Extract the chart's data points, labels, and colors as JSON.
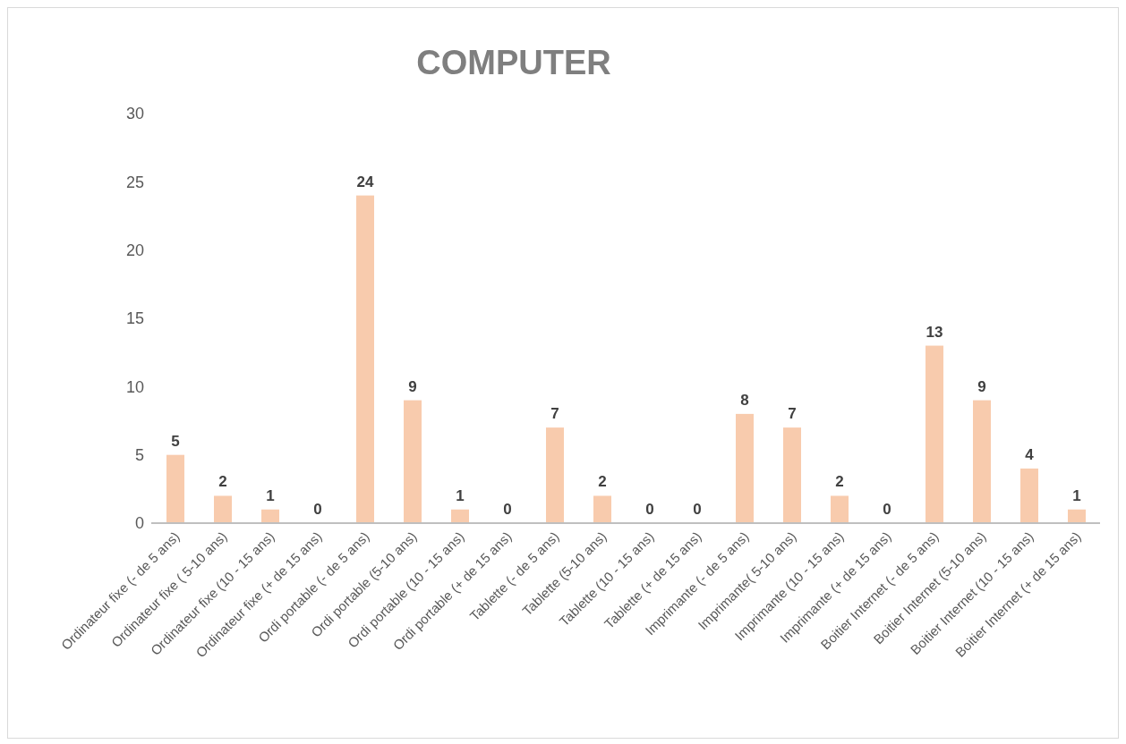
{
  "chart_data": {
    "type": "bar",
    "title": "COMPUTER",
    "categories": [
      "Ordinateur fixe (- de 5 ans)",
      "Ordinateur fixe ( 5-10 ans)",
      "Ordinateur fixe (10 - 15 ans)",
      "Ordinateur fixe (+ de 15 ans)",
      "Ordi portable (- de 5 ans)",
      "Ordi portable (5-10 ans)",
      "Ordi portable (10 - 15 ans)",
      "Ordi portable (+ de 15 ans)",
      "Tablette (- de 5 ans)",
      "Tablette (5-10 ans)",
      "Tablette (10 - 15 ans)",
      "Tablette (+ de 15 ans)",
      "Imprimante (- de 5 ans)",
      "Imprimante( 5-10 ans)",
      "Imprimante (10 - 15 ans)",
      "Imprimante (+ de 15 ans)",
      "Boitier Internet (- de 5 ans)",
      "Boitier Internet (5-10 ans)",
      "Boitier Internet (10 - 15 ans)",
      "Boitier Internet (+ de 15 ans)"
    ],
    "values": [
      5,
      2,
      1,
      0,
      24,
      9,
      1,
      0,
      7,
      2,
      0,
      0,
      8,
      7,
      2,
      0,
      13,
      9,
      4,
      1
    ],
    "color": "#f8cbad",
    "ylim": [
      0,
      30
    ],
    "yticks": [
      0,
      5,
      10,
      15,
      20,
      25,
      30
    ],
    "data_labels": true,
    "grid": false,
    "legend": false
  }
}
